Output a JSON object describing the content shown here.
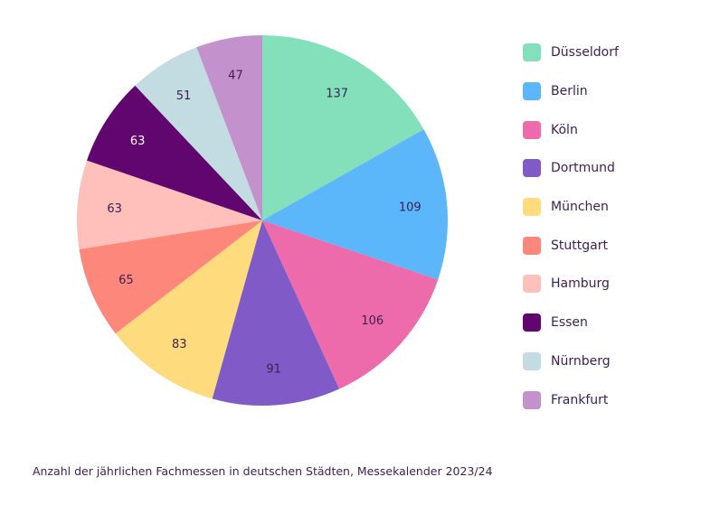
{
  "chart_data": {
    "type": "pie",
    "title": "",
    "caption": "Anzahl der jährlichen Fachmessen in deutschen Städten, Messekalender 2023/24",
    "categories": [
      "Düsseldorf",
      "Berlin",
      "Köln",
      "Dortmund",
      "München",
      "Stuttgart",
      "Hamburg",
      "Essen",
      "Nürnberg",
      "Frankfurt"
    ],
    "values": [
      137,
      109,
      106,
      91,
      83,
      65,
      63,
      63,
      51,
      47
    ],
    "labels": [
      "137",
      "109",
      "106",
      "91",
      "83",
      "65",
      "63",
      "63",
      "51",
      "47"
    ],
    "colors": [
      "#84e0bb",
      "#5cb6fa",
      "#ed6bab",
      "#805bc8",
      "#fedc7d",
      "#fe877c",
      "#ffbfba",
      "#61066e",
      "#c3dce1",
      "#c391cb"
    ],
    "label_colors": [
      "#3b1f52",
      "#3b1f52",
      "#3b1f52",
      "#3b1f52",
      "#3b1f52",
      "#3b1f52",
      "#3b1f52",
      "#ffffff",
      "#3b1f52",
      "#3b1f52"
    ],
    "start_angle": "12 o'clock",
    "direction": "clockwise",
    "legend_position": "right"
  }
}
